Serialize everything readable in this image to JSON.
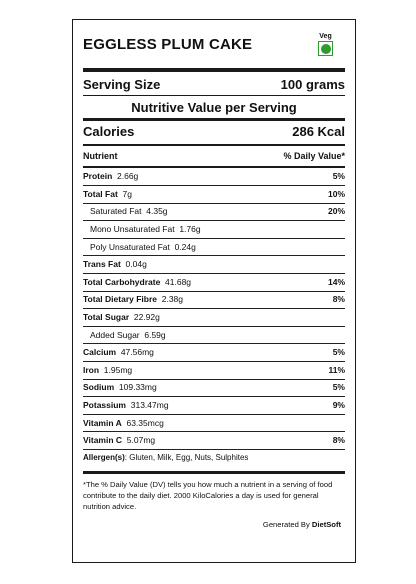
{
  "title": "EGGLESS PLUM CAKE",
  "veg_label": "Veg",
  "serving": {
    "label": "Serving Size",
    "value": "100 grams"
  },
  "nutritive_heading": "Nutritive Value per Serving",
  "calories": {
    "label": "Calories",
    "value": "286 Kcal"
  },
  "table_header": {
    "nutrient": "Nutrient",
    "dv": "% Daily Value*"
  },
  "nutrients": [
    {
      "name": "Protein",
      "amount": "2.66g",
      "dv": "5%",
      "bold": true,
      "sub": false
    },
    {
      "name": "Total Fat",
      "amount": "7g",
      "dv": "10%",
      "bold": true,
      "sub": false
    },
    {
      "name": "Saturated Fat",
      "amount": "4.35g",
      "dv": "20%",
      "bold": false,
      "sub": true
    },
    {
      "name": "Mono Unsaturated Fat",
      "amount": "1.76g",
      "dv": "",
      "bold": false,
      "sub": true
    },
    {
      "name": "Poly Unsaturated Fat",
      "amount": "0.24g",
      "dv": "",
      "bold": false,
      "sub": true
    },
    {
      "name": "Trans Fat",
      "amount": "0.04g",
      "dv": "",
      "bold": true,
      "sub": false
    },
    {
      "name": "Total Carbohydrate",
      "amount": "41.68g",
      "dv": "14%",
      "bold": true,
      "sub": false
    },
    {
      "name": "Total Dietary Fibre",
      "amount": "2.38g",
      "dv": "8%",
      "bold": true,
      "sub": false
    },
    {
      "name": "Total Sugar",
      "amount": "22.92g",
      "dv": "",
      "bold": true,
      "sub": false
    },
    {
      "name": "Added Sugar",
      "amount": "6.59g",
      "dv": "",
      "bold": false,
      "sub": true
    },
    {
      "name": "Calcium",
      "amount": "47.56mg",
      "dv": "5%",
      "bold": true,
      "sub": false
    },
    {
      "name": "Iron",
      "amount": "1.95mg",
      "dv": "11%",
      "bold": true,
      "sub": false
    },
    {
      "name": "Sodium",
      "amount": "109.33mg",
      "dv": "5%",
      "bold": true,
      "sub": false
    },
    {
      "name": "Potassium",
      "amount": "313.47mg",
      "dv": "9%",
      "bold": true,
      "sub": false
    },
    {
      "name": "Vitamin A",
      "amount": "63.35mcg",
      "dv": "",
      "bold": true,
      "sub": false
    },
    {
      "name": "Vitamin C",
      "amount": "5.07mg",
      "dv": "8%",
      "bold": true,
      "sub": false
    }
  ],
  "allergen": {
    "label": "Allergen(s)",
    "value": ": Gluten, Milk, Egg, Nuts, Sulphites"
  },
  "footnote": "*The % Daily Value (DV) tells you how much a nutrient in a serving of food contribute to the daily diet. 2000 KiloCalories a day is used for general nutrition advice.",
  "generated": {
    "prefix": "Generated By ",
    "brand": "DietSoft"
  },
  "colors": {
    "veg_green": "#2e9b2e",
    "rule": "#1a1a1a"
  }
}
